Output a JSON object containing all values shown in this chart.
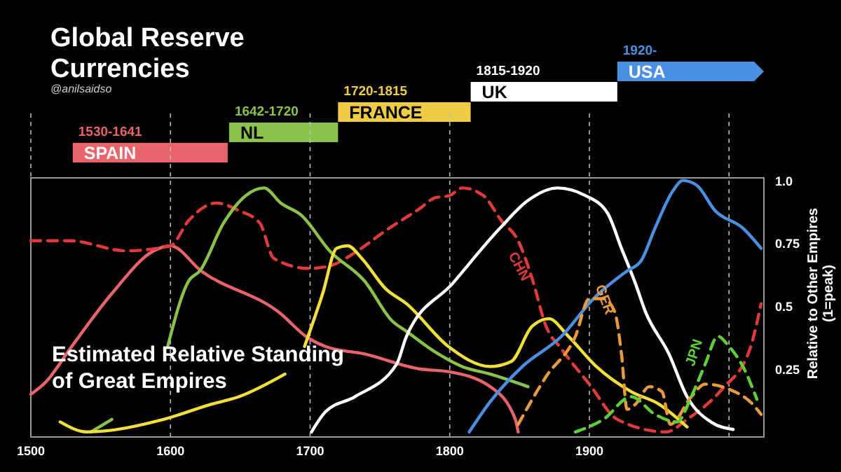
{
  "chart_data": [
    {
      "type": "bar",
      "orientation": "horizontal",
      "title": "Global Reserve Currencies",
      "subtitle": "@anilsaidso",
      "categories": [
        "USA",
        "UK",
        "FRANCE",
        "NL",
        "SPAIN"
      ],
      "base": [
        1920,
        1815,
        1720,
        1642,
        1530
      ],
      "values": [
        105,
        105,
        95,
        78,
        111
      ],
      "colors": [
        "#4a90e2",
        "#ffffff",
        "#f0cb45",
        "#8bc34a",
        "#e8646a"
      ],
      "annotations": [
        "1920-",
        "1815-1920",
        "1720-1815",
        "1642-1720",
        "1530-1641"
      ],
      "xlim": [
        1500,
        2025
      ]
    },
    {
      "type": "line",
      "ylabel": "Relative to Other Empires\n(1=peak)",
      "annotations": [
        "Estimated Relative Standing of Great Empires"
      ],
      "xlim": [
        1500,
        2025
      ],
      "ylim": [
        -0.02,
        1.01
      ],
      "xticks": [
        1500,
        1600,
        1700,
        1800,
        1900,
        {
          "value": 2000,
          "label": null
        }
      ],
      "yticks": [
        0.25,
        0.5,
        0.75,
        {
          "value": 1,
          "label": "1.0"
        }
      ],
      "grid": "x",
      "series": [
        {
          "color": "#e8646a",
          "line_style": "solid",
          "x": [
            1500,
            1511,
            1528,
            1558,
            1588,
            1600,
            1622,
            1679,
            1697,
            1711,
            1739,
            1779,
            1799,
            1829,
            1847,
            1849
          ],
          "values": [
            0.15,
            0.2,
            0.33,
            0.55,
            0.72,
            0.74,
            0.64,
            0.47,
            0.38,
            0.34,
            0.31,
            0.25,
            0.24,
            0.18,
            0.05,
            0.0
          ]
        },
        {
          "name": "CHN",
          "color": "#e03a3a",
          "line_style": "dashed",
          "x": [
            1500,
            1528,
            1568,
            1600,
            1613,
            1633,
            1649,
            1664,
            1674,
            1699,
            1714,
            1734,
            1754,
            1779,
            1789,
            1800,
            1809,
            1824,
            1837,
            1849,
            1859,
            1869,
            1880,
            1900,
            1920,
            1955,
            1970,
            1995,
            2015,
            2023
          ],
          "values": [
            0.76,
            0.76,
            0.72,
            0.74,
            0.84,
            0.91,
            0.88,
            0.83,
            0.69,
            0.65,
            0.66,
            0.72,
            0.8,
            0.89,
            0.93,
            0.94,
            0.97,
            0.94,
            0.84,
            0.76,
            0.61,
            0.42,
            0.33,
            0.19,
            0.05,
            0.0,
            0.05,
            0.17,
            0.33,
            0.51
          ]
        },
        {
          "color": "#8bc34a",
          "line_style": "solid",
          "x": [
            1543,
            1558,
            1580,
            1598,
            1613,
            1621,
            1638,
            1654,
            1667,
            1679,
            1694,
            1714,
            1739,
            1759,
            1769,
            1789,
            1809,
            1829,
            1856
          ],
          "values": [
            0.0,
            0.05,
            null,
            0.34,
            0.6,
            0.64,
            0.83,
            0.94,
            0.97,
            0.91,
            0.86,
            0.72,
            0.6,
            0.44,
            0.4,
            0.32,
            0.26,
            0.23,
            0.18
          ]
        },
        {
          "color": "#f2e03a",
          "line_style": "solid",
          "x": [
            1521,
            1540,
            1595,
            1629,
            1649,
            1682,
            1690,
            1696,
            1709,
            1719,
            1727,
            1737,
            1754,
            1769,
            1799,
            1829,
            1844,
            1859,
            1871,
            1885,
            1905,
            1930,
            1950,
            1970
          ],
          "values": [
            0.04,
            0.0,
            0.05,
            0.11,
            0.14,
            0.23,
            null,
            0.34,
            0.55,
            0.73,
            0.74,
            0.69,
            0.57,
            0.51,
            0.34,
            0.26,
            0.28,
            0.42,
            0.45,
            0.38,
            0.26,
            0.16,
            0.11,
            0.02
          ]
        },
        {
          "color": "#ffffff",
          "line_style": "solid",
          "x": [
            1701,
            1711,
            1732,
            1762,
            1769,
            1802,
            1836,
            1856,
            1877,
            1897,
            1913,
            1923,
            1933,
            1940,
            1957,
            1970,
            1987,
            2003
          ],
          "values": [
            0.0,
            0.08,
            0.14,
            0.27,
            0.38,
            0.59,
            0.81,
            0.92,
            0.97,
            0.94,
            0.87,
            0.73,
            0.59,
            0.48,
            0.31,
            0.14,
            0.04,
            0.01
          ]
        },
        {
          "color": "#4a90e2",
          "line_style": "solid",
          "x": [
            1814,
            1829,
            1852,
            1880,
            1903,
            1927,
            1937,
            1947,
            1960,
            1967,
            1977,
            1990,
            2010,
            2023
          ],
          "values": [
            0.0,
            0.12,
            0.26,
            0.38,
            0.53,
            0.64,
            0.68,
            0.81,
            0.96,
            1.0,
            0.98,
            0.88,
            0.81,
            0.73
          ]
        },
        {
          "name": "GER",
          "color": "#e89a3c",
          "line_style": "dashed",
          "x": [
            1849,
            1869,
            1890,
            1900,
            1910,
            1918,
            1923,
            1927,
            1933,
            1943,
            1952,
            1958,
            1973,
            1983,
            2000,
            2017,
            2023
          ],
          "values": [
            0.03,
            0.22,
            0.38,
            0.53,
            0.53,
            0.48,
            0.31,
            0.09,
            0.11,
            0.18,
            0.16,
            0.03,
            0.14,
            0.19,
            0.17,
            0.11,
            0.07
          ]
        },
        {
          "name": "JPN",
          "color": "#5ecf3a",
          "line_style": "dashed",
          "x": [
            1890,
            1910,
            1930,
            1947,
            1963,
            1973,
            1983,
            1992,
            2000,
            2010,
            2020
          ],
          "values": [
            0.0,
            0.05,
            0.14,
            0.07,
            0.04,
            0.14,
            0.27,
            0.38,
            0.34,
            0.26,
            0.13
          ]
        }
      ]
    }
  ]
}
